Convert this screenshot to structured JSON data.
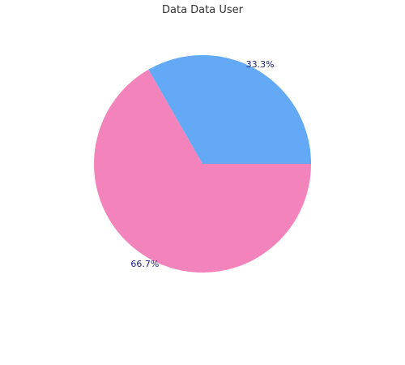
{
  "chart_data": {
    "type": "pie",
    "title": "Data Data User",
    "slices": [
      {
        "value": 33.3,
        "label": "33.3%",
        "color": "#63a9f5"
      },
      {
        "value": 66.7,
        "label": "66.7%",
        "color": "#f384bb"
      }
    ],
    "start_angle_deg": 0,
    "direction": "counterclockwise"
  }
}
